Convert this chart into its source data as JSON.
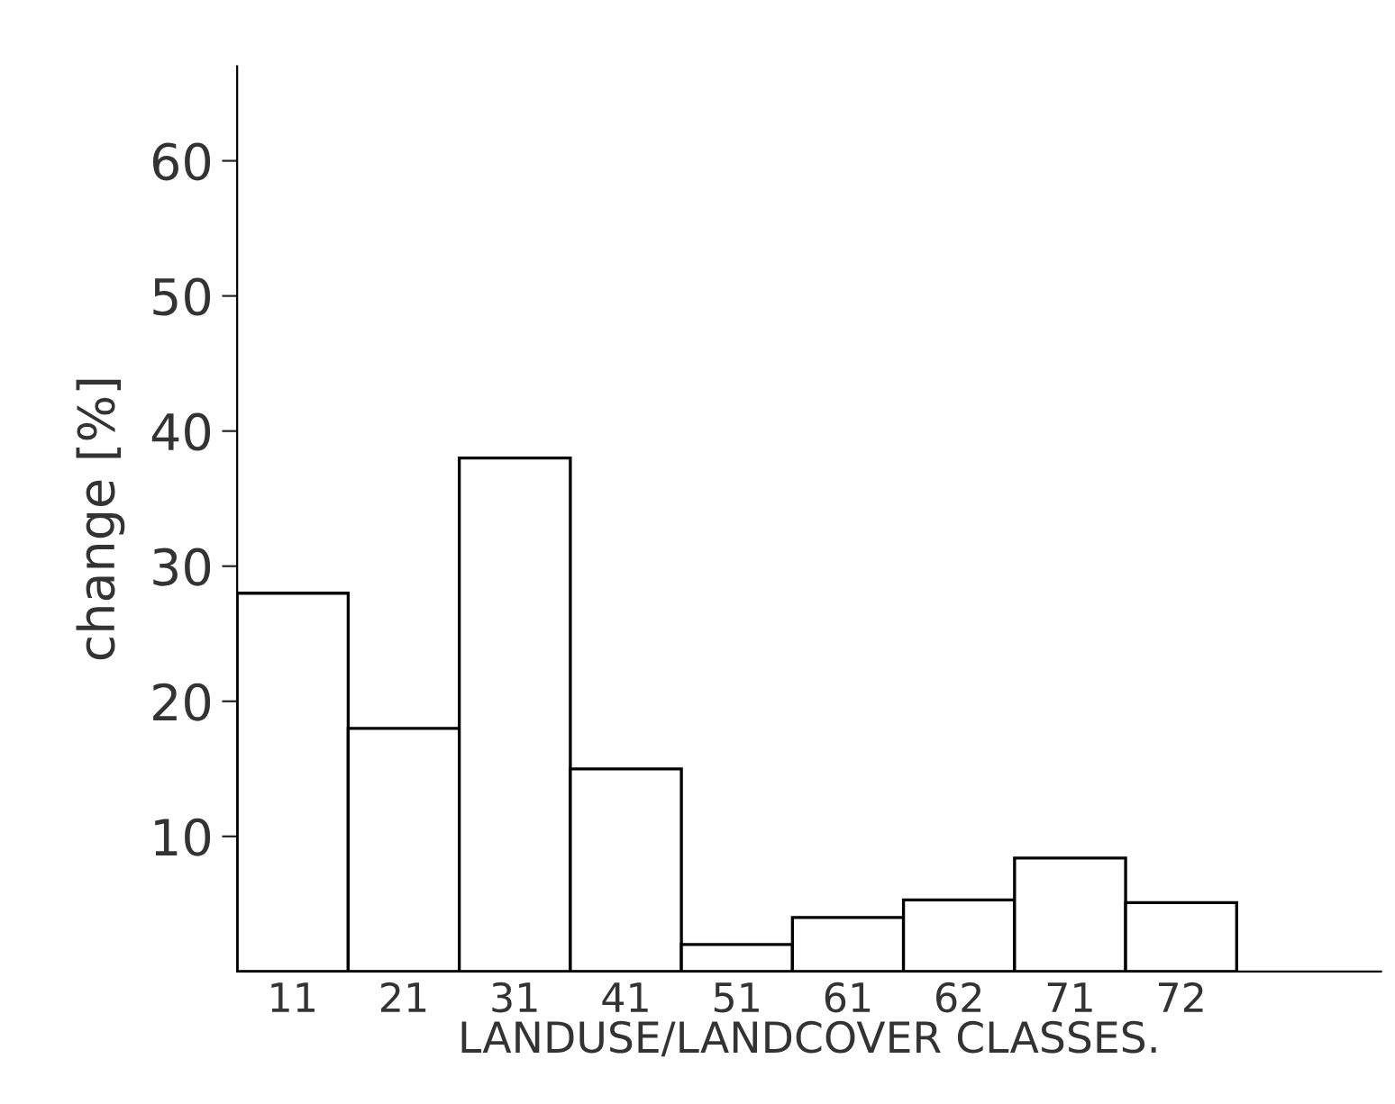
{
  "chart_data": {
    "type": "bar",
    "xlabel": "LANDUSE/LANDCOVER CLASSES.",
    "ylabel": "change [%]",
    "categories": [
      "11",
      "21",
      "31",
      "41",
      "51",
      "61",
      "62",
      "71",
      "72"
    ],
    "values": [
      28,
      18,
      38,
      15,
      2,
      4,
      5.3,
      8.4,
      5.1
    ],
    "color": "#ffffff",
    "ylim": [
      0,
      67
    ],
    "yticks": [
      10,
      20,
      30,
      40,
      50,
      60
    ],
    "grid": false
  }
}
